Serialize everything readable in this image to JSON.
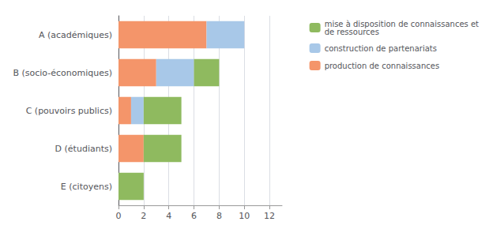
{
  "chart_data": {
    "type": "bar",
    "orientation": "horizontal",
    "stacked": true,
    "categories": [
      "E (citoyens)",
      "D (étudiants)",
      "C (pouvoirs publics)",
      "B (socio-économiques)",
      "A (académiques)"
    ],
    "series": [
      {
        "name": "production de connaissances",
        "color": "#f4956a",
        "values": [
          0,
          2,
          1,
          3,
          7
        ]
      },
      {
        "name": "construction de partenariats",
        "color": "#a8c8e8",
        "values": [
          0,
          0,
          1,
          3,
          3
        ]
      },
      {
        "name": "mise à disposition de connaissances et\nde ressources",
        "color": "#8fba5f",
        "values": [
          2,
          3,
          3,
          2,
          0
        ]
      }
    ],
    "xlim": [
      0,
      13
    ],
    "xticks": [
      0,
      2,
      4,
      6,
      8,
      10,
      12
    ],
    "grid": true,
    "legend": "upper right"
  }
}
